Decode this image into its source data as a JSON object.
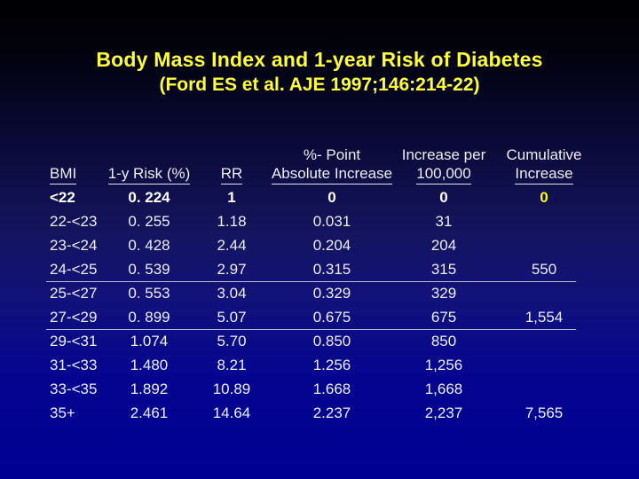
{
  "slide": {
    "title_line1": "Body Mass Index and 1-year Risk of Diabetes",
    "title_line2": "(Ford ES et al. AJE 1997;146:214-22)"
  },
  "colors": {
    "background_top": "#000000",
    "background_bottom": "#000092",
    "title_yellow": "#ffff38",
    "highlight_yellow": "#ffff00",
    "text_white": "#eeeef4",
    "divider_line": "#b9b9cf"
  },
  "table": {
    "headers": [
      {
        "line1": "",
        "line2": "BMI"
      },
      {
        "line1": "",
        "line2": "1-y Risk (%)"
      },
      {
        "line1": "",
        "line2": "RR"
      },
      {
        "line1": "%- Point",
        "line2": "Absolute Increase"
      },
      {
        "line1": "Increase per",
        "line2": "100,000"
      },
      {
        "line1": "Cumulative",
        "line2": "Increase"
      }
    ],
    "rows": [
      [
        "<22",
        "0. 224",
        "1",
        "0",
        "0",
        "0"
      ],
      [
        "22-<23",
        "0. 255",
        "1.18",
        "0.031",
        "31",
        ""
      ],
      [
        "23-<24",
        "0. 428",
        "2.44",
        "0.204",
        "204",
        ""
      ],
      [
        "24-<25",
        "0. 539",
        "2.97",
        "0.315",
        "315",
        "550"
      ],
      [
        "25-<27",
        "0. 553",
        "3.04",
        "0.329",
        "329",
        ""
      ],
      [
        "27-<29",
        "0. 899",
        "5.07",
        "0.675",
        "675",
        "1,554"
      ],
      [
        "29-<31",
        "1.074",
        "5.70",
        "0.850",
        "850",
        ""
      ],
      [
        "31-<33",
        "1.480",
        "8.21",
        "1.256",
        "1,256",
        ""
      ],
      [
        "33-<35",
        "1.892",
        "10.89",
        "1.668",
        "1,668",
        ""
      ],
      [
        "35+",
        "2.461",
        "14.64",
        "2.237",
        "2,237",
        "7,565"
      ]
    ]
  },
  "chart_data": {
    "type": "table",
    "title": "Body Mass Index and 1-year Risk of Diabetes (Ford ES et al. AJE 1997;146:214-22)",
    "columns": [
      "BMI",
      "1-y Risk (%)",
      "RR",
      "%- Point Absolute Increase",
      "Increase per 100,000",
      "Cumulative Increase"
    ],
    "rows": [
      [
        "<22",
        0.224,
        1,
        0,
        0,
        0
      ],
      [
        "22-<23",
        0.255,
        1.18,
        0.031,
        31,
        null
      ],
      [
        "23-<24",
        0.428,
        2.44,
        0.204,
        204,
        null
      ],
      [
        "24-<25",
        0.539,
        2.97,
        0.315,
        315,
        550
      ],
      [
        "25-<27",
        0.553,
        3.04,
        0.329,
        329,
        null
      ],
      [
        "27-<29",
        0.899,
        5.07,
        0.675,
        675,
        1554
      ],
      [
        "29-<31",
        1.074,
        5.7,
        0.85,
        850,
        null
      ],
      [
        "31-<33",
        1.48,
        8.21,
        1.256,
        1256,
        null
      ],
      [
        "33-<35",
        1.892,
        10.89,
        1.668,
        1668,
        null
      ],
      [
        "35+",
        2.461,
        14.64,
        2.237,
        2237,
        7565
      ]
    ]
  }
}
